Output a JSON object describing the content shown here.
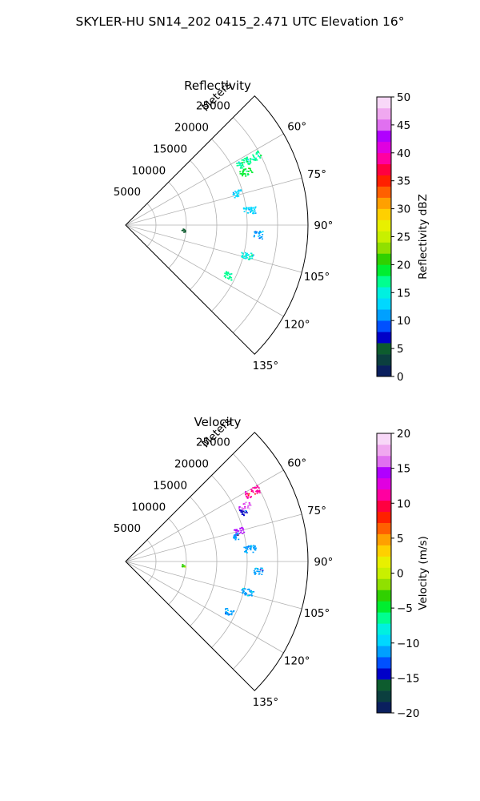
{
  "suptitle": "SKYLER-HU  SN14_202  0415_2.471 UTC Elevation 16°",
  "chart_data": [
    {
      "type": "polar-sector",
      "title": "Reflectivity",
      "radial_label": "Meters",
      "radial_ticks": [
        5000,
        10000,
        15000,
        20000,
        25000
      ],
      "radial_tick_labels": [
        "5000",
        "10000",
        "15000",
        "20000",
        "25000"
      ],
      "rmax": 30000,
      "theta_range_deg": [
        45,
        135
      ],
      "theta_ticks_deg": [
        60,
        75,
        90,
        105,
        120,
        135
      ],
      "theta_tick_labels": [
        "60°",
        "75°",
        "90°",
        "105°",
        "120°",
        "135°"
      ],
      "grid": true,
      "colorbar": {
        "label": "Reflectivity dBZ",
        "min": 0,
        "max": 50,
        "ticks": [
          0,
          5,
          10,
          15,
          20,
          25,
          30,
          35,
          40,
          45,
          50
        ],
        "tick_labels": [
          "0",
          "5",
          "10",
          "15",
          "20",
          "25",
          "30",
          "35",
          "40",
          "45",
          "50"
        ],
        "colors": [
          "#0a1f5e",
          "#0b3f3f",
          "#0d5c2e",
          "#0000c8",
          "#0050ff",
          "#00a0ff",
          "#00d8ff",
          "#00f0e0",
          "#00ff90",
          "#00ee30",
          "#30d000",
          "#90e000",
          "#c8f000",
          "#e8f000",
          "#ffd000",
          "#ffa000",
          "#ff6000",
          "#ff2000",
          "#ff0040",
          "#ff00a0",
          "#e000e0",
          "#b000ff",
          "#e070f0",
          "#f0a8f0",
          "#f8d8f8"
        ]
      },
      "echoes": [
        {
          "theta": 62,
          "r1": 20500,
          "r2": 25000,
          "value": 17
        },
        {
          "theta": 66,
          "r1": 20500,
          "r2": 22500,
          "value": 19
        },
        {
          "theta": 74,
          "r1": 18300,
          "r2": 19800,
          "value": 12
        },
        {
          "theta": 83,
          "r1": 19500,
          "r2": 21500,
          "value": 13
        },
        {
          "theta": 94,
          "r1": 21000,
          "r2": 22500,
          "value": 11
        },
        {
          "theta": 104,
          "r1": 19500,
          "r2": 21500,
          "value": 15
        },
        {
          "theta": 116,
          "r1": 18000,
          "r2": 19500,
          "value": 16
        },
        {
          "theta": 95,
          "r1": 9200,
          "r2": 9800,
          "value": 4
        }
      ]
    },
    {
      "type": "polar-sector",
      "title": "Velocity",
      "radial_label": "Meters",
      "radial_ticks": [
        5000,
        10000,
        15000,
        20000,
        25000
      ],
      "radial_tick_labels": [
        "5000",
        "10000",
        "15000",
        "20000",
        "25000"
      ],
      "rmax": 30000,
      "theta_range_deg": [
        45,
        135
      ],
      "theta_ticks_deg": [
        60,
        75,
        90,
        105,
        120,
        135
      ],
      "theta_tick_labels": [
        "60°",
        "75°",
        "90°",
        "105°",
        "120°",
        "135°"
      ],
      "grid": true,
      "colorbar": {
        "label": "Velocity (m/s)",
        "min": -20,
        "max": 20,
        "ticks": [
          -20,
          -15,
          -10,
          -5,
          0,
          5,
          10,
          15,
          20
        ],
        "tick_labels": [
          "−20",
          "−15",
          "−10",
          "−5",
          "0",
          "5",
          "10",
          "15",
          "20"
        ],
        "colors": [
          "#0a1f5e",
          "#0b3f3f",
          "#0d5c2e",
          "#0000c8",
          "#0050ff",
          "#00a0ff",
          "#00d8ff",
          "#00f0e0",
          "#00ff90",
          "#00ee30",
          "#30d000",
          "#90e000",
          "#c8f000",
          "#e8f000",
          "#ffd000",
          "#ffa000",
          "#ff6000",
          "#ff2000",
          "#ff0040",
          "#ff00a0",
          "#e000e0",
          "#b000ff",
          "#e070f0",
          "#f0a8f0",
          "#f8d8f8"
        ]
      },
      "echoes": [
        {
          "theta": 61,
          "r1": 22500,
          "r2": 25000,
          "value": 11
        },
        {
          "theta": 65,
          "r1": 20500,
          "r2": 22500,
          "value": 16
        },
        {
          "theta": 67,
          "r1": 20500,
          "r2": 21500,
          "value": -14
        },
        {
          "theta": 75,
          "r1": 18500,
          "r2": 20000,
          "value": 15
        },
        {
          "theta": 77,
          "r1": 18000,
          "r2": 19000,
          "value": -12
        },
        {
          "theta": 84,
          "r1": 19500,
          "r2": 21500,
          "value": -11
        },
        {
          "theta": 94,
          "r1": 21000,
          "r2": 22500,
          "value": -11
        },
        {
          "theta": 104,
          "r1": 19500,
          "r2": 21500,
          "value": -11
        },
        {
          "theta": 116,
          "r1": 18000,
          "r2": 19500,
          "value": -11
        },
        {
          "theta": 94,
          "r1": 9200,
          "r2": 9800,
          "value": -4
        }
      ]
    }
  ]
}
